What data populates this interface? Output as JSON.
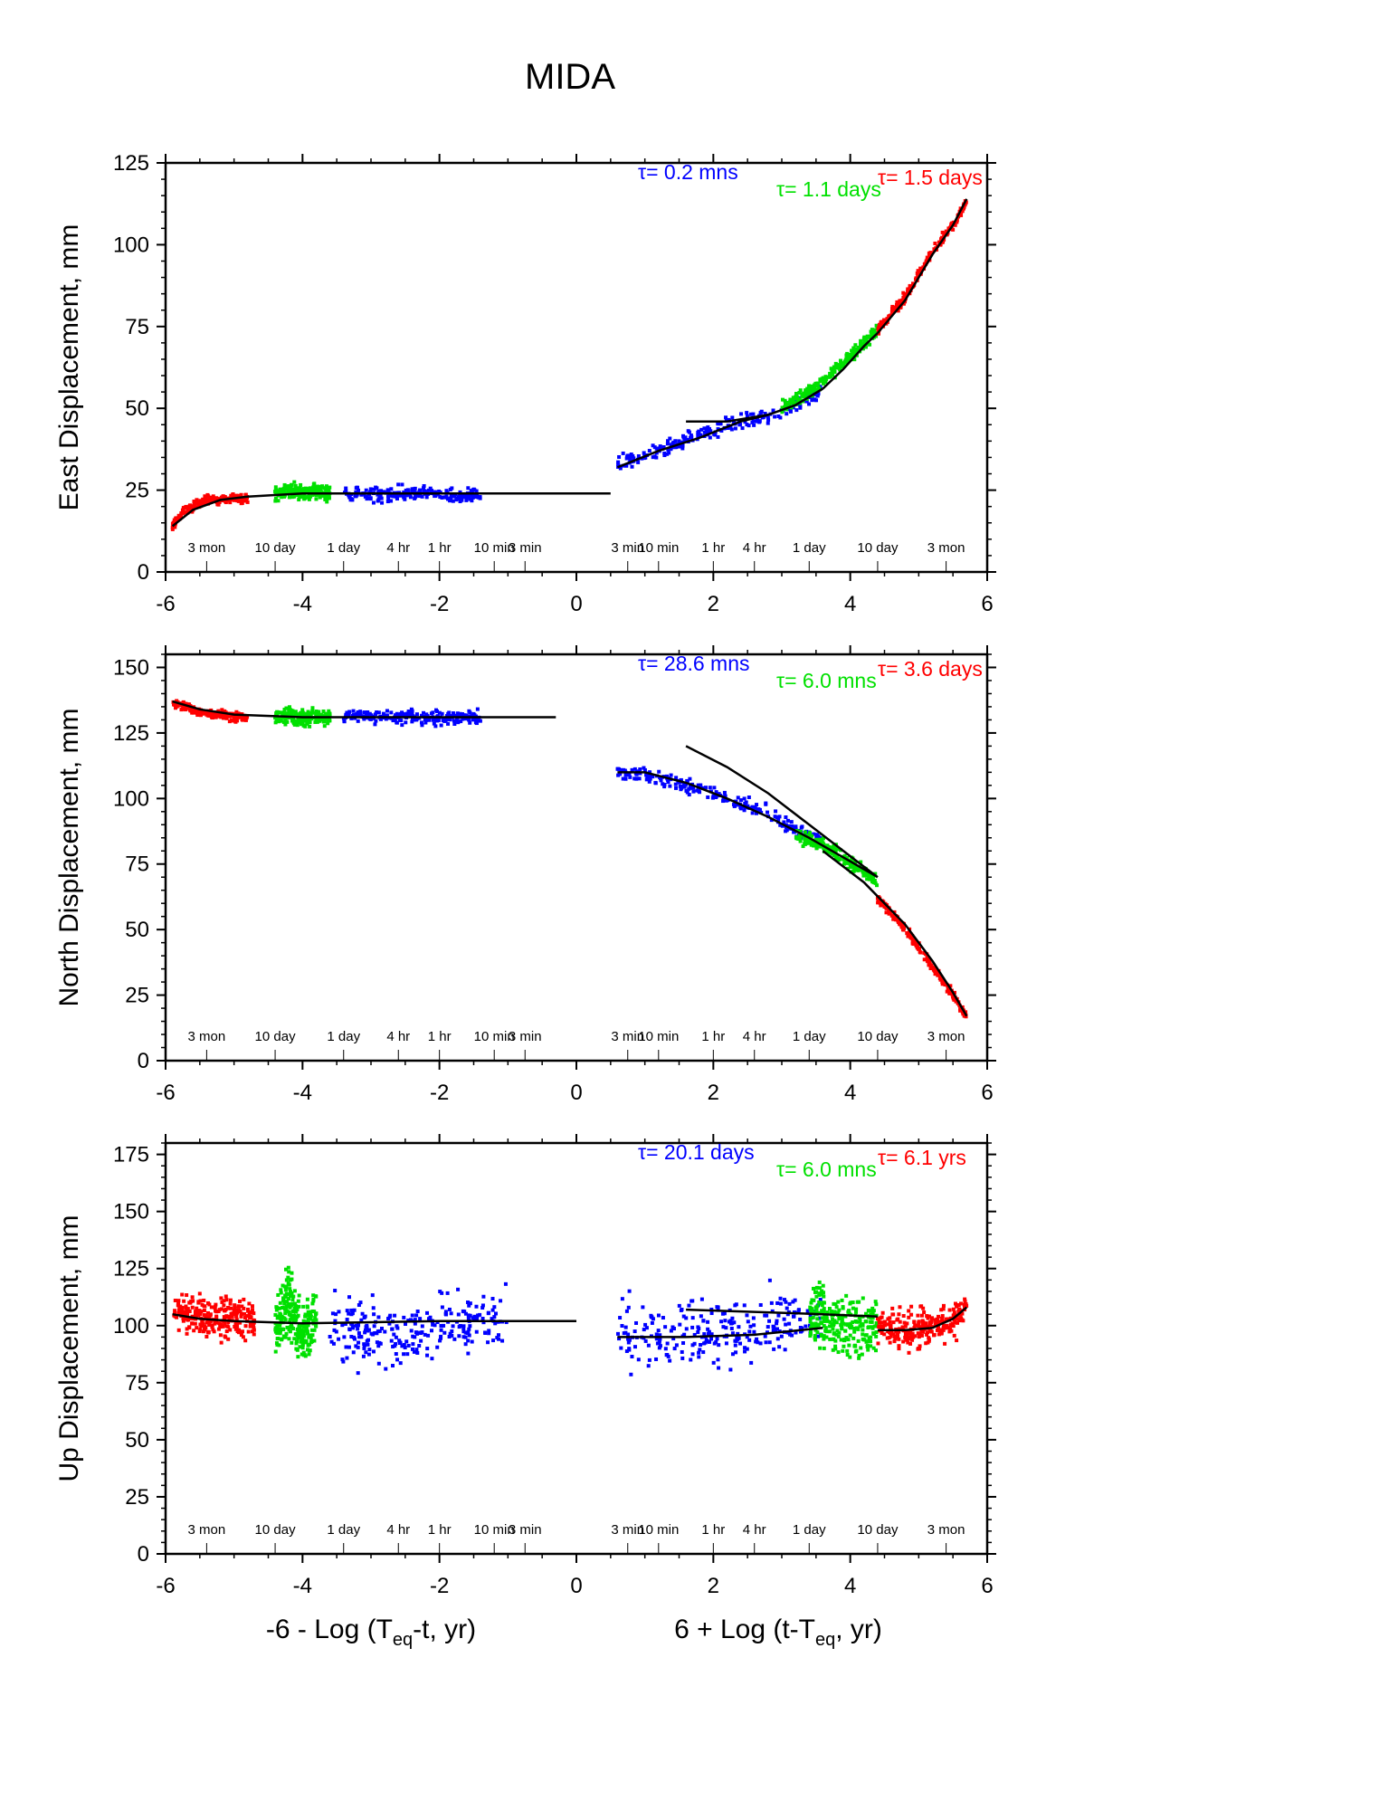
{
  "title": "MIDA",
  "x_labels": {
    "left": "-6 - Log (T",
    "left_sub": "eq",
    "left_tail": "-t, yr)",
    "right": "6 + Log (t-T",
    "right_sub": "eq",
    "right_tail": ", yr)"
  },
  "colors": {
    "red": "#ff0000",
    "green": "#00e000",
    "blue": "#0000ff",
    "fit": "#000000"
  },
  "time_labels_left": [
    {
      "x": -5.4,
      "label": "3 mon"
    },
    {
      "x": -4.4,
      "label": "10 day"
    },
    {
      "x": -3.4,
      "label": "1 day"
    },
    {
      "x": -2.6,
      "label": "4 hr"
    },
    {
      "x": -2.0,
      "label": "1 hr"
    },
    {
      "x": -1.2,
      "label": "10 min"
    },
    {
      "x": -0.75,
      "label": "3 min"
    }
  ],
  "time_labels_right": [
    {
      "x": 0.75,
      "label": "3 min"
    },
    {
      "x": 1.2,
      "label": "10 min"
    },
    {
      "x": 2.0,
      "label": "1 hr"
    },
    {
      "x": 2.6,
      "label": "4 hr"
    },
    {
      "x": 3.4,
      "label": "1 day"
    },
    {
      "x": 4.4,
      "label": "10 day"
    },
    {
      "x": 5.4,
      "label": "3 mon"
    }
  ],
  "chart_data": [
    {
      "type": "scatter",
      "ylabel": "East Displacement, mm",
      "xlim": [
        -6,
        6
      ],
      "ylim": [
        0,
        125
      ],
      "xticks": [
        -6,
        -4,
        -2,
        0,
        2,
        4,
        6
      ],
      "yticks": [
        0,
        25,
        50,
        75,
        100,
        125
      ],
      "tau": [
        {
          "text": "τ= 0.2 mns",
          "color": "blue"
        },
        {
          "text": "τ= 1.1 days",
          "color": "green"
        },
        {
          "text": "τ= 1.5 days",
          "color": "red"
        }
      ],
      "series": [
        {
          "color": "red",
          "x": [
            -5.9,
            -5.8,
            -5.7,
            -5.6,
            -5.4,
            -5.2,
            -5.0,
            -4.8
          ],
          "y": [
            14,
            17,
            19,
            20,
            22,
            22,
            23,
            22
          ]
        },
        {
          "color": "green",
          "x": [
            -4.4,
            -4.2,
            -4.0,
            -3.8,
            -3.6
          ],
          "y": [
            24,
            25,
            24,
            25,
            24
          ]
        },
        {
          "color": "blue",
          "x": [
            -3.4,
            -3.0,
            -2.6,
            -2.2,
            -1.8,
            -1.4
          ],
          "y": [
            24,
            23,
            24,
            24,
            23,
            24
          ]
        },
        {
          "color": "blue",
          "x": [
            0.6,
            1.2,
            1.8,
            2.4,
            2.8,
            3.2,
            3.6
          ],
          "y": [
            33,
            37,
            42,
            46,
            48,
            51,
            55
          ]
        },
        {
          "color": "green",
          "x": [
            3.0,
            3.4,
            3.8,
            4.0,
            4.2,
            4.4
          ],
          "y": [
            50,
            55,
            62,
            66,
            70,
            74
          ]
        },
        {
          "color": "red",
          "x": [
            4.4,
            4.8,
            5.2,
            5.5,
            5.7
          ],
          "y": [
            74,
            84,
            98,
            106,
            113
          ]
        }
      ],
      "fits": [
        {
          "x": [
            -5.9,
            -5.6,
            -5.2,
            -4.8,
            -4.0,
            -2.0,
            0.5
          ],
          "y": [
            14,
            19,
            22,
            23,
            24,
            24,
            24
          ]
        },
        {
          "x": [
            0.6,
            1.2,
            1.8,
            2.4,
            2.8
          ],
          "y": [
            32,
            37,
            41,
            46,
            48
          ]
        },
        {
          "x": [
            1.6,
            2.2,
            2.8,
            3.2,
            3.6
          ],
          "y": [
            46,
            46,
            48,
            51,
            56
          ]
        },
        {
          "x": [
            3.6,
            3.9,
            4.2,
            4.4
          ],
          "y": [
            56,
            62,
            69,
            73
          ]
        },
        {
          "x": [
            4.4,
            4.8,
            5.2,
            5.5,
            5.7
          ],
          "y": [
            73,
            83,
            97,
            106,
            114
          ]
        }
      ]
    },
    {
      "type": "scatter",
      "ylabel": "North Displacement, mm",
      "xlim": [
        -6,
        6
      ],
      "ylim": [
        0,
        155
      ],
      "xticks": [
        -6,
        -4,
        -2,
        0,
        2,
        4,
        6
      ],
      "yticks": [
        0,
        25,
        50,
        75,
        100,
        125,
        150
      ],
      "tau": [
        {
          "text": "τ= 28.6 mns",
          "color": "blue"
        },
        {
          "text": "τ= 6.0 mns",
          "color": "green"
        },
        {
          "text": "τ= 3.6 days",
          "color": "red"
        }
      ],
      "series": [
        {
          "color": "red",
          "x": [
            -5.9,
            -5.7,
            -5.5,
            -5.2,
            -5.0,
            -4.8
          ],
          "y": [
            136,
            135,
            133,
            132,
            131,
            131
          ]
        },
        {
          "color": "green",
          "x": [
            -4.4,
            -4.2,
            -4.0,
            -3.8,
            -3.6
          ],
          "y": [
            131,
            132,
            130,
            131,
            131
          ]
        },
        {
          "color": "blue",
          "x": [
            -3.4,
            -3.0,
            -2.6,
            -2.2,
            -1.8,
            -1.4
          ],
          "y": [
            132,
            131,
            131,
            131,
            131,
            131
          ]
        },
        {
          "color": "blue",
          "x": [
            0.6,
            1.2,
            1.8,
            2.4,
            2.8,
            3.2,
            3.6
          ],
          "y": [
            110,
            108,
            104,
            98,
            94,
            88,
            84
          ]
        },
        {
          "color": "green",
          "x": [
            3.2,
            3.6,
            3.8,
            4.0,
            4.2,
            4.4
          ],
          "y": [
            86,
            82,
            80,
            75,
            72,
            68
          ]
        },
        {
          "color": "red",
          "x": [
            4.4,
            4.8,
            5.2,
            5.5,
            5.7
          ],
          "y": [
            62,
            50,
            36,
            25,
            17
          ]
        }
      ],
      "fits": [
        {
          "x": [
            -5.9,
            -5.5,
            -5.0,
            -4.0,
            -2.0,
            -0.3
          ],
          "y": [
            137,
            134,
            132,
            131,
            131,
            131
          ]
        },
        {
          "x": [
            0.6,
            1.0,
            1.6,
            2.2,
            2.8,
            3.4,
            4.0,
            4.4
          ],
          "y": [
            110,
            110,
            106,
            100,
            93,
            85,
            76,
            70
          ]
        },
        {
          "x": [
            1.6,
            2.2,
            2.8,
            3.4,
            4.0,
            4.4
          ],
          "y": [
            120,
            112,
            102,
            90,
            78,
            70
          ]
        },
        {
          "x": [
            3.6,
            4.2,
            4.8,
            5.2,
            5.5,
            5.7
          ],
          "y": [
            80,
            68,
            52,
            38,
            26,
            17
          ]
        }
      ]
    },
    {
      "type": "scatter",
      "ylabel": "Up Displacement, mm",
      "xlim": [
        -6,
        6
      ],
      "ylim": [
        0,
        180
      ],
      "xticks": [
        -6,
        -4,
        -2,
        0,
        2,
        4,
        6
      ],
      "yticks": [
        0,
        25,
        50,
        75,
        100,
        125,
        150,
        175
      ],
      "tau": [
        {
          "text": "τ= 20.1 days",
          "color": "blue"
        },
        {
          "text": "τ= 6.0 mns",
          "color": "green"
        },
        {
          "text": "τ= 6.1 yrs",
          "color": "red"
        }
      ],
      "series": [
        {
          "color": "red",
          "x": [
            -5.9,
            -5.6,
            -5.3,
            -5.0,
            -4.7
          ],
          "y": [
            105,
            106,
            103,
            104,
            102
          ]
        },
        {
          "color": "green",
          "x": [
            -4.4,
            -4.2,
            -4.0,
            -3.8
          ],
          "y": [
            100,
            110,
            95,
            105
          ]
        },
        {
          "color": "blue",
          "x": [
            -3.6,
            -3.2,
            -2.8,
            -2.4,
            -2.0,
            -1.6,
            -1.0
          ],
          "y": [
            102,
            98,
            96,
            97,
            100,
            101,
            103
          ]
        },
        {
          "color": "blue",
          "x": [
            0.6,
            1.2,
            1.8,
            2.4,
            2.8,
            3.2,
            3.6
          ],
          "y": [
            95,
            96,
            97,
            98,
            99,
            101,
            103
          ]
        },
        {
          "color": "green",
          "x": [
            3.4,
            3.8,
            4.0,
            4.2,
            4.4
          ],
          "y": [
            104,
            102,
            100,
            98,
            101
          ]
        },
        {
          "color": "red",
          "x": [
            4.4,
            4.8,
            5.2,
            5.5,
            5.7
          ],
          "y": [
            99,
            98,
            100,
            102,
            107
          ]
        }
      ],
      "fits": [
        {
          "x": [
            -5.9,
            -5.5,
            -5.0,
            -4.0,
            -2.0,
            0.0
          ],
          "y": [
            105,
            103,
            102,
            101,
            102,
            102
          ]
        },
        {
          "x": [
            0.6,
            1.6,
            2.6,
            3.6
          ],
          "y": [
            95,
            95,
            96,
            99
          ]
        },
        {
          "x": [
            1.6,
            2.6,
            3.6,
            4.4
          ],
          "y": [
            107,
            106,
            105,
            104
          ]
        },
        {
          "x": [
            4.4,
            4.8,
            5.2,
            5.5,
            5.7
          ],
          "y": [
            98,
            98,
            99,
            103,
            108
          ]
        }
      ]
    }
  ]
}
